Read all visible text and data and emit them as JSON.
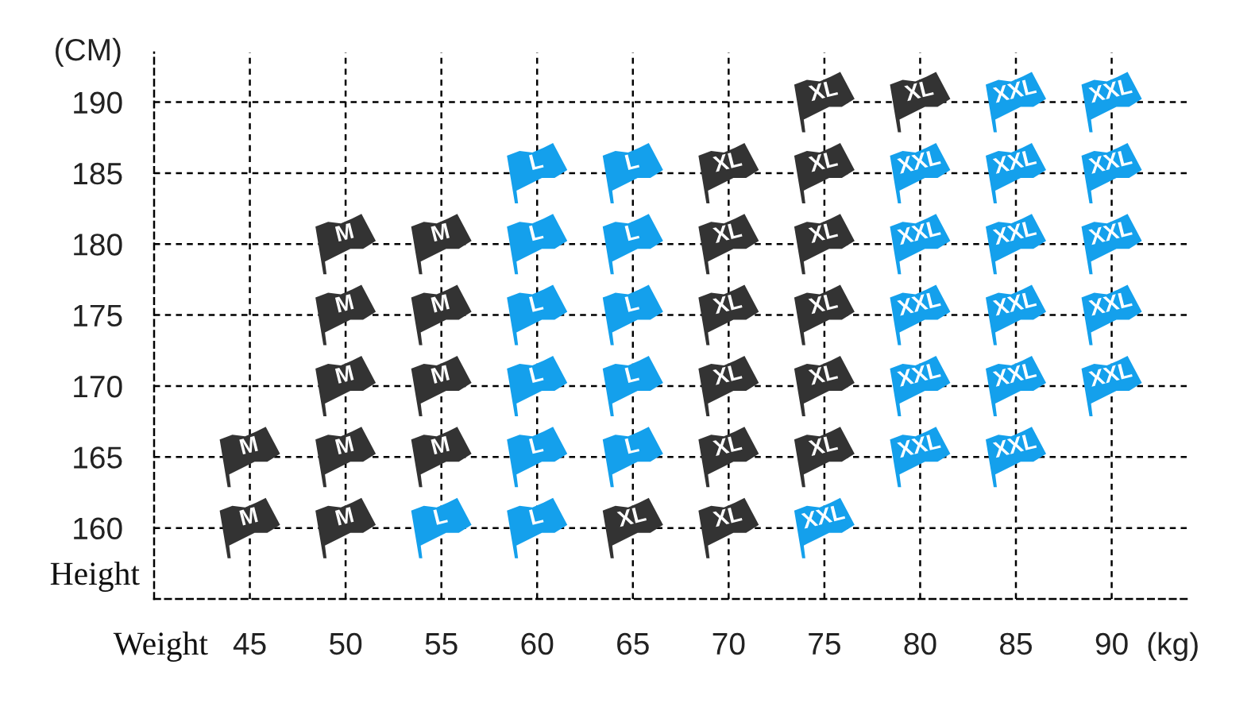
{
  "chart_data": {
    "type": "scatter",
    "xlabel": "Weight",
    "ylabel": "Height",
    "annotations": [
      "(CM)",
      "(kg)"
    ],
    "xlim": [
      40,
      94
    ],
    "ylim": [
      155,
      193.5
    ],
    "xticks": [
      45,
      50,
      55,
      60,
      65,
      70,
      75,
      80,
      85,
      90
    ],
    "yticks": [
      160,
      165,
      170,
      175,
      180,
      185,
      190
    ],
    "grid": true,
    "legend": false,
    "series": [
      {
        "name": "M",
        "color": "#333333",
        "x": [
          45,
          45,
          50,
          50,
          50,
          50,
          50,
          55,
          55,
          55,
          55
        ],
        "values": [
          160,
          165,
          160,
          165,
          170,
          175,
          180,
          165,
          170,
          175,
          180
        ]
      },
      {
        "name": "L",
        "color": "#14a0ec",
        "x": [
          55,
          60,
          60,
          60,
          60,
          60,
          60,
          65,
          65,
          65,
          65,
          65
        ],
        "values": [
          160,
          160,
          165,
          170,
          175,
          180,
          185,
          165,
          170,
          175,
          180,
          185
        ]
      },
      {
        "name": "XL",
        "color": "#333333",
        "x": [
          65,
          70,
          70,
          70,
          70,
          70,
          70,
          75,
          75,
          75,
          75,
          75,
          75,
          80
        ],
        "values": [
          160,
          160,
          165,
          170,
          175,
          180,
          185,
          165,
          170,
          175,
          180,
          185,
          190,
          190
        ]
      },
      {
        "name": "XXL",
        "color": "#14a0ec",
        "x": [
          75,
          80,
          80,
          80,
          80,
          80,
          85,
          85,
          85,
          85,
          85,
          85,
          90,
          90,
          90,
          90,
          90
        ],
        "values": [
          160,
          165,
          170,
          175,
          180,
          185,
          165,
          170,
          175,
          180,
          185,
          190,
          170,
          175,
          180,
          185,
          190
        ]
      }
    ]
  }
}
